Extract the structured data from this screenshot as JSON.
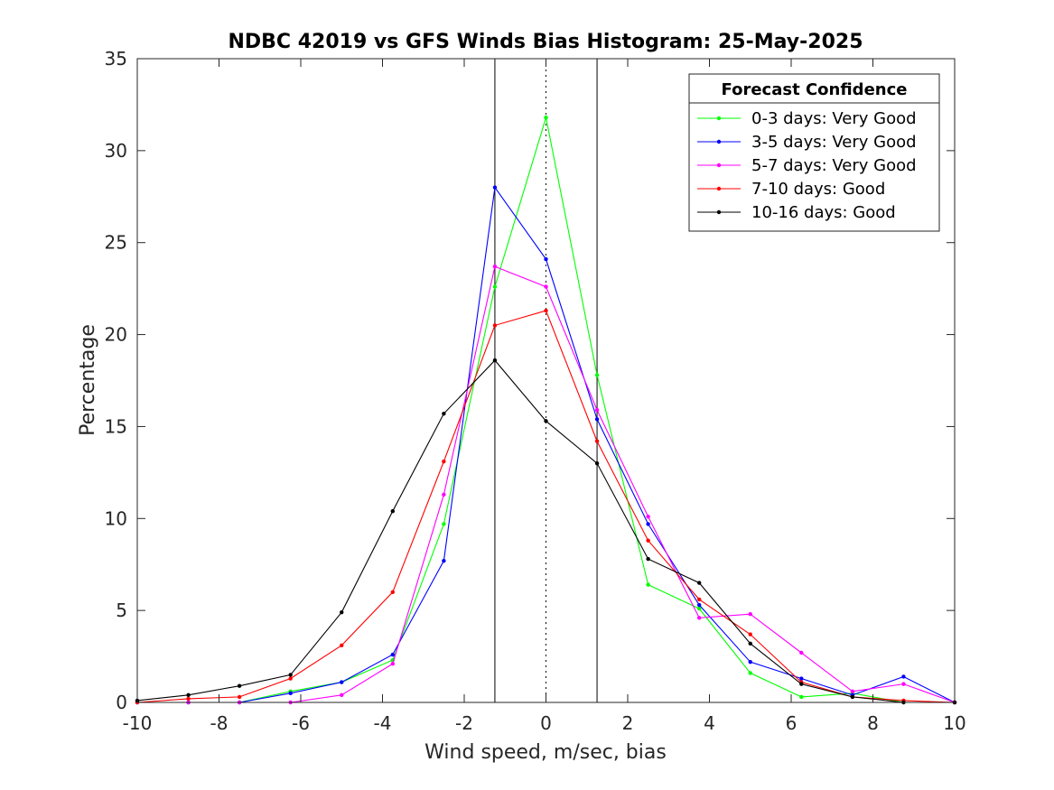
{
  "chart_data": {
    "type": "line",
    "title": "NDBC 42019 vs GFS Winds Bias Histogram: 25-May-2025",
    "xlabel": "Wind speed, m/sec, bias",
    "ylabel": "Percentage",
    "xlim": [
      -10,
      10
    ],
    "ylim": [
      0,
      35
    ],
    "xticks": [
      -10,
      -8,
      -6,
      -4,
      -2,
      0,
      2,
      4,
      6,
      8,
      10
    ],
    "yticks": [
      0,
      5,
      10,
      15,
      20,
      25,
      30,
      35
    ],
    "grid": false,
    "reference_lines": [
      {
        "x": -1.25,
        "style": "solid"
      },
      {
        "x": 0,
        "style": "dotted"
      },
      {
        "x": 1.25,
        "style": "solid"
      }
    ],
    "legend": {
      "title": "Forecast Confidence",
      "placement": "top-right"
    },
    "x": [
      -10,
      -8.75,
      -7.5,
      -6.25,
      -5,
      -3.75,
      -2.5,
      -1.25,
      0,
      1.25,
      2.5,
      3.75,
      5,
      6.25,
      7.5,
      8.75,
      10
    ],
    "series": [
      {
        "name": "0-3 days: Very Good",
        "color": "#00ff00",
        "values": [
          0,
          0,
          0,
          0.6,
          1.1,
          2.3,
          9.7,
          22.6,
          31.8,
          17.8,
          6.4,
          5.1,
          1.6,
          0.3,
          0.5,
          0,
          0
        ]
      },
      {
        "name": "3-5 days: Very Good",
        "color": "#0000ff",
        "values": [
          0,
          0,
          0,
          0.5,
          1.1,
          2.6,
          7.7,
          28.0,
          24.1,
          15.4,
          9.7,
          5.3,
          2.2,
          1.3,
          0.4,
          1.4,
          0
        ]
      },
      {
        "name": "5-7 days: Very Good",
        "color": "#ff00ff",
        "values": [
          0,
          0,
          0,
          0,
          0.4,
          2.1,
          11.3,
          23.7,
          22.6,
          15.9,
          10.1,
          4.6,
          4.8,
          2.7,
          0.6,
          1.0,
          0
        ]
      },
      {
        "name": "7-10 days: Good",
        "color": "#ff0000",
        "values": [
          0,
          0.2,
          0.3,
          1.3,
          3.1,
          6.0,
          13.1,
          20.5,
          21.3,
          14.2,
          8.8,
          5.6,
          3.7,
          1.1,
          0.3,
          0.1,
          0
        ]
      },
      {
        "name": "10-16 days: Good",
        "color": "#000000",
        "values": [
          0.1,
          0.4,
          0.9,
          1.5,
          4.9,
          10.4,
          15.7,
          18.6,
          15.3,
          13.0,
          7.8,
          6.5,
          3.2,
          1.0,
          0.3,
          0,
          0
        ]
      }
    ]
  }
}
